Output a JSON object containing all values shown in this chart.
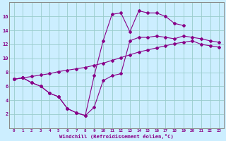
{
  "xlabel": "Windchill (Refroidissement éolien,°C)",
  "bg_color": "#cceeff",
  "line_color": "#880088",
  "grid_color": "#99cccc",
  "series_spike_x": [
    0,
    1,
    2,
    3,
    4,
    5,
    6,
    7,
    8,
    9,
    10,
    11,
    12,
    13,
    14,
    15,
    16,
    17,
    18,
    19
  ],
  "series_spike_y": [
    7.0,
    7.2,
    6.5,
    6.0,
    5.0,
    4.5,
    2.8,
    2.2,
    1.8,
    7.5,
    12.5,
    16.3,
    16.5,
    13.8,
    16.8,
    16.5,
    16.5,
    16.0,
    15.0,
    14.7
  ],
  "series_mid_x": [
    0,
    1,
    2,
    3,
    4,
    5,
    6,
    7,
    8,
    9,
    10,
    11,
    12,
    13,
    14,
    15,
    16,
    17,
    18,
    19,
    20,
    21,
    22,
    23
  ],
  "series_mid_y": [
    7.0,
    7.2,
    6.5,
    6.0,
    5.0,
    4.5,
    2.8,
    2.2,
    1.8,
    3.0,
    6.8,
    7.5,
    7.8,
    12.5,
    13.0,
    13.0,
    13.2,
    13.0,
    12.8,
    13.2,
    13.0,
    12.8,
    12.5,
    12.3
  ],
  "series_diag_x": [
    0,
    1,
    2,
    3,
    4,
    5,
    6,
    7,
    8,
    9,
    10,
    11,
    12,
    13,
    14,
    15,
    16,
    17,
    18,
    19,
    20,
    21,
    22,
    23
  ],
  "series_diag_y": [
    7.0,
    7.2,
    7.4,
    7.6,
    7.8,
    8.1,
    8.3,
    8.5,
    8.7,
    9.0,
    9.3,
    9.7,
    10.1,
    10.5,
    10.9,
    11.2,
    11.5,
    11.8,
    12.1,
    12.3,
    12.5,
    12.0,
    11.8,
    11.6
  ],
  "xlim": [
    -0.5,
    23.5
  ],
  "ylim": [
    0,
    18
  ],
  "xticks": [
    0,
    1,
    2,
    3,
    4,
    5,
    6,
    7,
    8,
    9,
    10,
    11,
    12,
    13,
    14,
    15,
    16,
    17,
    18,
    19,
    20,
    21,
    22,
    23
  ],
  "yticks": [
    2,
    4,
    6,
    8,
    10,
    12,
    14,
    16
  ]
}
